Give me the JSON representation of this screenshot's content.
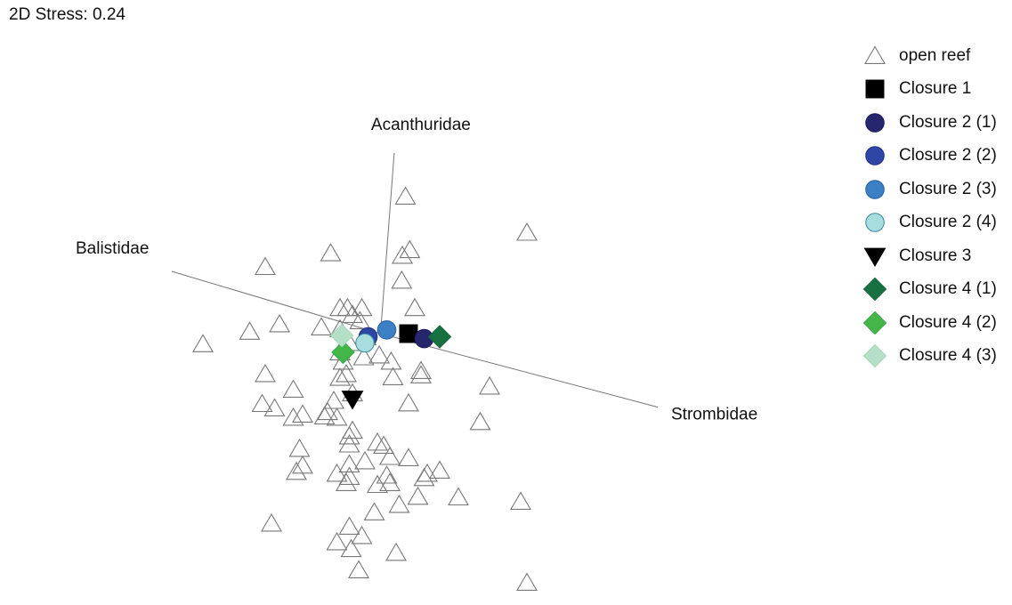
{
  "stress_label": "2D Stress: 0.24",
  "chart_data": {
    "type": "scatter",
    "title": "",
    "xlabel": "",
    "ylabel": "",
    "grid": false,
    "legend_position": "right",
    "vectors": [
      {
        "label": "Acanthuridae",
        "from": [
          0.35,
          -0.1
        ],
        "to": [
          0.57,
          2.8
        ]
      },
      {
        "label": "Balistidae",
        "from": [
          0.35,
          -0.1
        ],
        "to": [
          -3.0,
          0.9
        ]
      },
      {
        "label": "Strombidae",
        "from": [
          0.35,
          -0.1
        ],
        "to": [
          4.8,
          -1.28
        ]
      }
    ],
    "series": [
      {
        "name": "open reef",
        "marker": "triangle-up-open",
        "color": "#777777",
        "fill": "none",
        "points": [
          [
            0.75,
            2.1
          ],
          [
            2.7,
            1.52
          ],
          [
            -0.45,
            1.19
          ],
          [
            0.82,
            1.24
          ],
          [
            0.7,
            1.15
          ],
          [
            -1.5,
            0.97
          ],
          [
            0.69,
            0.75
          ],
          [
            0.9,
            0.31
          ],
          [
            -0.3,
            0.31
          ],
          [
            -0.18,
            0.31
          ],
          [
            0.05,
            0.31
          ],
          [
            -0.1,
            0.2
          ],
          [
            0.02,
            0.1
          ],
          [
            -1.27,
            0.05
          ],
          [
            -2.5,
            -0.27
          ],
          [
            -1.75,
            -0.07
          ],
          [
            -0.6,
            0.0
          ],
          [
            -0.3,
            -0.03
          ],
          [
            0.12,
            -0.16
          ],
          [
            -0.15,
            -0.25
          ],
          [
            -0.3,
            -0.4
          ],
          [
            -0.25,
            -0.55
          ],
          [
            0.33,
            -0.45
          ],
          [
            0.08,
            -0.48
          ],
          [
            0.52,
            -0.55
          ],
          [
            1.0,
            -0.7
          ],
          [
            -1.5,
            -0.75
          ],
          [
            -0.2,
            -0.75
          ],
          [
            -0.3,
            -0.81
          ],
          [
            -1.05,
            -1.0
          ],
          [
            -0.1,
            -1.06
          ],
          [
            -0.4,
            -1.18
          ],
          [
            -1.55,
            -1.23
          ],
          [
            -1.35,
            -1.3
          ],
          [
            -0.9,
            -1.4
          ],
          [
            -0.5,
            -1.36
          ],
          [
            -0.55,
            -1.43
          ],
          [
            -0.35,
            -1.45
          ],
          [
            -1.05,
            -1.45
          ],
          [
            -0.15,
            -1.75
          ],
          [
            -0.95,
            -1.95
          ],
          [
            -0.15,
            -1.88
          ],
          [
            0.3,
            -1.85
          ],
          [
            0.4,
            -1.9
          ],
          [
            0.5,
            -2.08
          ],
          [
            0.1,
            -2.15
          ],
          [
            0.8,
            -2.1
          ],
          [
            -0.15,
            -2.2
          ],
          [
            -0.9,
            -2.22
          ],
          [
            -1.0,
            -2.32
          ],
          [
            -0.35,
            -2.35
          ],
          [
            -0.15,
            -2.4
          ],
          [
            -0.2,
            -2.5
          ],
          [
            0.3,
            -2.53
          ],
          [
            0.45,
            -2.38
          ],
          [
            0.5,
            -2.5
          ],
          [
            1.1,
            -2.35
          ],
          [
            1.05,
            -2.42
          ],
          [
            1.3,
            -2.3
          ],
          [
            2.6,
            -2.8
          ],
          [
            0.65,
            -2.85
          ],
          [
            0.25,
            -2.97
          ],
          [
            -1.4,
            -3.15
          ],
          [
            -0.15,
            -3.2
          ],
          [
            0.05,
            -3.35
          ],
          [
            -0.35,
            -3.45
          ],
          [
            0.0,
            -3.9
          ],
          [
            0.6,
            -3.62
          ],
          [
            2.7,
            -4.1
          ],
          [
            1.6,
            -2.73
          ],
          [
            -0.12,
            -3.56
          ],
          [
            1.95,
            -1.52
          ],
          [
            -0.1,
            -1.66
          ],
          [
            0.95,
            -2.72
          ],
          [
            0.8,
            -1.22
          ],
          [
            2.1,
            -0.95
          ],
          [
            1.0,
            -0.77
          ],
          [
            0.55,
            -0.8
          ]
        ]
      },
      {
        "name": "Closure 1",
        "marker": "square",
        "color": "#000000",
        "fill": "#000000",
        "points": [
          [
            0.8,
            -0.1
          ]
        ]
      },
      {
        "name": "Closure 2 (1)",
        "marker": "circle",
        "color": "#1c1c5e",
        "fill": "#26266e",
        "points": [
          [
            1.05,
            -0.18
          ]
        ]
      },
      {
        "name": "Closure 2 (2)",
        "marker": "circle",
        "color": "#1f2f80",
        "fill": "#2e46a6",
        "points": [
          [
            0.15,
            -0.15
          ]
        ]
      },
      {
        "name": "Closure 2 (3)",
        "marker": "circle",
        "color": "#2d5e9e",
        "fill": "#3b7fc4",
        "points": [
          [
            0.45,
            -0.04
          ]
        ]
      },
      {
        "name": "Closure 2 (4)",
        "marker": "circle",
        "color": "#3a8a99",
        "fill": "#a8dde0",
        "points": [
          [
            0.1,
            -0.25
          ]
        ]
      },
      {
        "name": "Closure 3",
        "marker": "triangle-down",
        "color": "#000000",
        "fill": "#000000",
        "points": [
          [
            -0.1,
            -1.15
          ]
        ]
      },
      {
        "name": "Closure 4 (1)",
        "marker": "diamond",
        "color": "#17683c",
        "fill": "#17703f",
        "points": [
          [
            1.3,
            -0.15
          ]
        ]
      },
      {
        "name": "Closure 4 (2)",
        "marker": "diamond",
        "color": "#3aa84a",
        "fill": "#44b549",
        "points": [
          [
            -0.25,
            -0.4
          ]
        ]
      },
      {
        "name": "Closure 4 (3)",
        "marker": "diamond",
        "color": "#a6d8bd",
        "fill": "#b5e0c8",
        "points": [
          [
            -0.27,
            -0.13
          ]
        ]
      }
    ]
  }
}
